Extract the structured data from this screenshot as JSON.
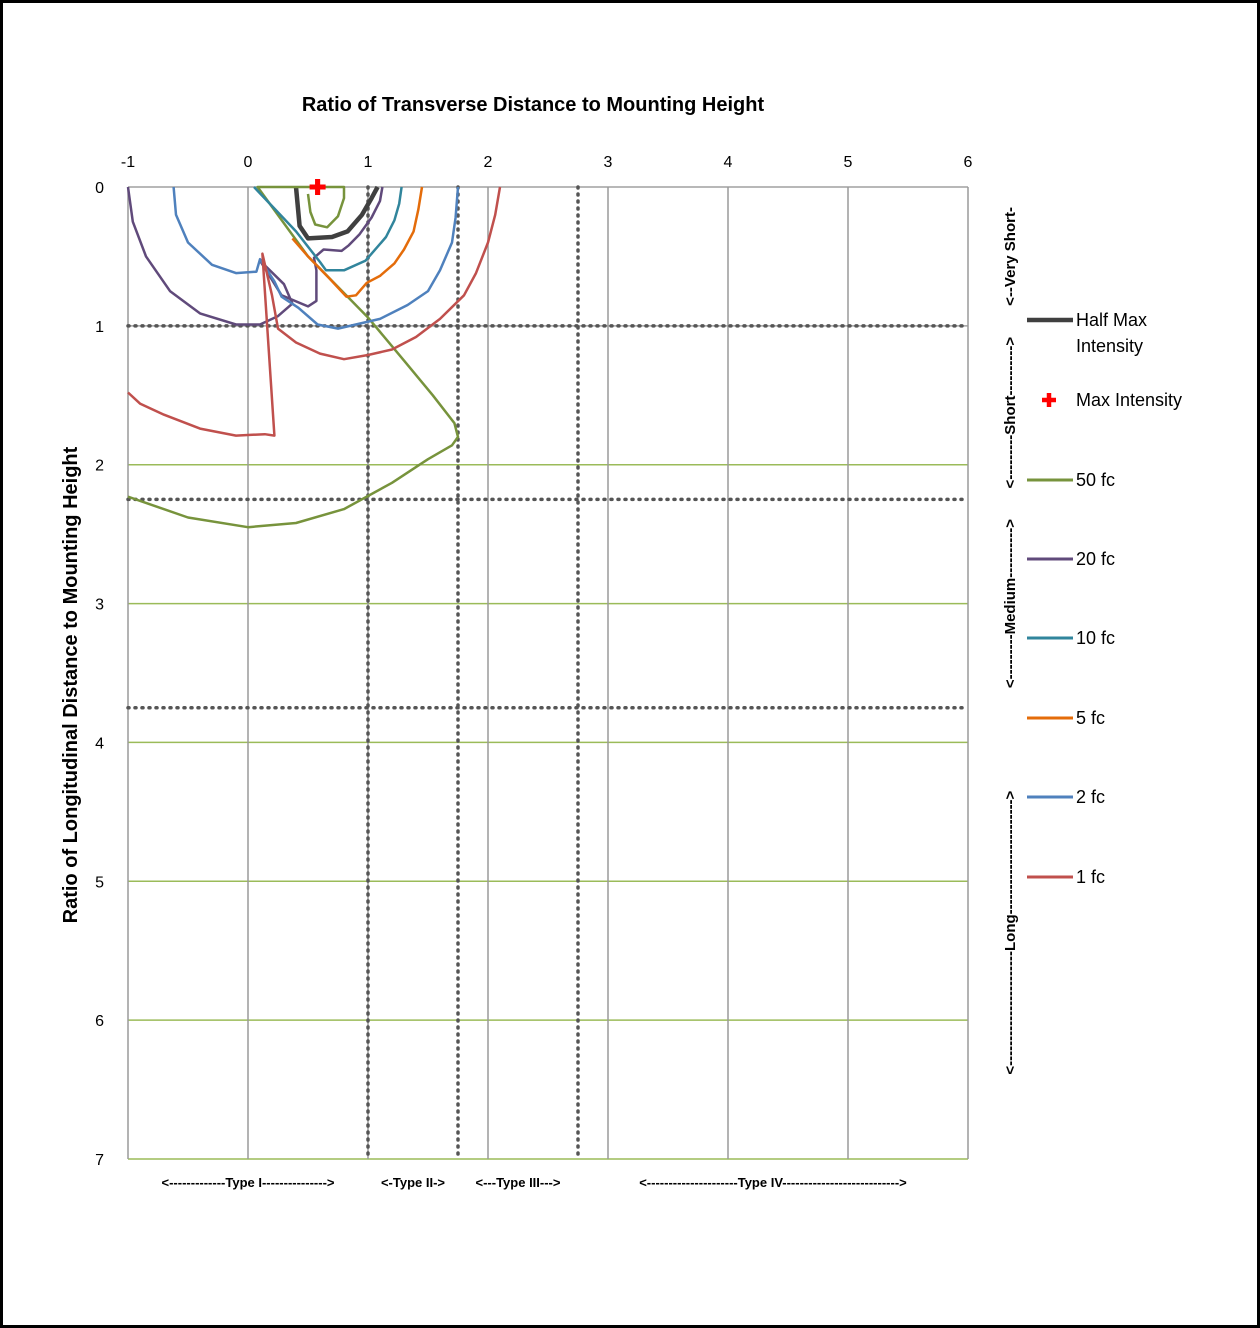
{
  "chart_data": {
    "type": "line",
    "title": "Ratio of Transverse Distance to Mounting Height",
    "ylabel": "Ratio of Longitudinal Distance to Mounting Height",
    "xlim": [
      -1,
      6
    ],
    "ylim": [
      0,
      7
    ],
    "y_inverted": true,
    "x_axis_position": "top",
    "x_ticks": [
      "-1",
      "0",
      "1",
      "2",
      "3",
      "4",
      "5",
      "6"
    ],
    "y_ticks": [
      "0",
      "1",
      "2",
      "3",
      "4",
      "5",
      "6",
      "7"
    ],
    "legend_position": "right",
    "grid": true,
    "series": [
      {
        "name": "Half Max Intensity",
        "color": "#404040",
        "points": [
          [
            0.4,
            0
          ],
          [
            0.43,
            0.28
          ],
          [
            0.5,
            0.37
          ],
          [
            0.7,
            0.36
          ],
          [
            0.83,
            0.32
          ],
          [
            0.95,
            0.2
          ],
          [
            1.03,
            0.08
          ],
          [
            1.08,
            0
          ]
        ]
      },
      {
        "name": "50 fc",
        "color": "#77933c",
        "points": [
          [
            0.5,
            0.05
          ],
          [
            0.52,
            0.18
          ],
          [
            0.56,
            0.27
          ],
          [
            0.66,
            0.29
          ],
          [
            0.75,
            0.21
          ],
          [
            0.8,
            0.08
          ],
          [
            0.8,
            0
          ],
          [
            0.08,
            0
          ],
          [
            0.5,
            0.5
          ],
          [
            1.0,
            0.94
          ],
          [
            1.3,
            1.25
          ],
          [
            1.54,
            1.5
          ],
          [
            1.72,
            1.7
          ],
          [
            1.75,
            1.8
          ],
          [
            1.7,
            1.86
          ],
          [
            1.5,
            1.96
          ],
          [
            1.43,
            2.0
          ],
          [
            1.2,
            2.13
          ],
          [
            0.8,
            2.32
          ],
          [
            0.4,
            2.42
          ],
          [
            0,
            2.45
          ],
          [
            -0.5,
            2.38
          ],
          [
            -1,
            2.23
          ]
        ]
      },
      {
        "name": "20 fc",
        "color": "#604a7b",
        "points": [
          [
            -1,
            0
          ],
          [
            -0.96,
            0.25
          ],
          [
            -0.85,
            0.5
          ],
          [
            -0.65,
            0.75
          ],
          [
            -0.4,
            0.91
          ],
          [
            -0.1,
            0.99
          ],
          [
            0.1,
            0.99
          ],
          [
            0.25,
            0.93
          ],
          [
            0.37,
            0.84
          ],
          [
            0.3,
            0.7
          ],
          [
            0.1,
            0.53
          ],
          [
            0.28,
            0.78
          ],
          [
            0.5,
            0.86
          ],
          [
            0.57,
            0.82
          ],
          [
            0.57,
            0.6
          ],
          [
            0.55,
            0.51
          ],
          [
            0.63,
            0.45
          ],
          [
            0.78,
            0.46
          ],
          [
            0.84,
            0.42
          ],
          [
            0.93,
            0.34
          ],
          [
            1.03,
            0.22
          ],
          [
            1.1,
            0.1
          ],
          [
            1.12,
            0
          ]
        ]
      },
      {
        "name": "10 fc",
        "color": "#31859c",
        "points": [
          [
            0.05,
            0
          ],
          [
            0.4,
            0.32
          ],
          [
            0.6,
            0.54
          ],
          [
            0.65,
            0.6
          ],
          [
            0.8,
            0.6
          ],
          [
            0.98,
            0.53
          ],
          [
            1.15,
            0.36
          ],
          [
            1.22,
            0.24
          ],
          [
            1.26,
            0.12
          ],
          [
            1.28,
            0
          ]
        ]
      },
      {
        "name": "5 fc",
        "color": "#e46c0a",
        "points": [
          [
            0.37,
            0.37
          ],
          [
            0.5,
            0.5
          ],
          [
            0.68,
            0.66
          ],
          [
            0.82,
            0.79
          ],
          [
            0.9,
            0.78
          ],
          [
            0.99,
            0.69
          ],
          [
            1.1,
            0.64
          ],
          [
            1.22,
            0.55
          ],
          [
            1.3,
            0.45
          ],
          [
            1.38,
            0.32
          ],
          [
            1.42,
            0.16
          ],
          [
            1.45,
            0
          ]
        ]
      },
      {
        "name": "2 fc",
        "color": "#4f81bd",
        "points": [
          [
            -0.62,
            0
          ],
          [
            -0.6,
            0.2
          ],
          [
            -0.5,
            0.4
          ],
          [
            -0.3,
            0.56
          ],
          [
            -0.1,
            0.62
          ],
          [
            0.07,
            0.61
          ],
          [
            0.1,
            0.52
          ],
          [
            0.22,
            0.68
          ],
          [
            0.28,
            0.79
          ],
          [
            0.42,
            0.87
          ],
          [
            0.58,
            0.99
          ],
          [
            0.75,
            1.02
          ],
          [
            1.1,
            0.95
          ],
          [
            1.33,
            0.85
          ],
          [
            1.5,
            0.75
          ],
          [
            1.6,
            0.6
          ],
          [
            1.7,
            0.4
          ],
          [
            1.73,
            0.22
          ],
          [
            1.75,
            0
          ]
        ]
      },
      {
        "name": "1 fc",
        "color": "#c0504d",
        "points": [
          [
            2.1,
            0
          ],
          [
            2.06,
            0.2
          ],
          [
            2.0,
            0.4
          ],
          [
            1.9,
            0.62
          ],
          [
            1.8,
            0.78
          ],
          [
            1.6,
            0.95
          ],
          [
            1.4,
            1.08
          ],
          [
            1.2,
            1.17
          ],
          [
            1.0,
            1.21
          ],
          [
            0.8,
            1.24
          ],
          [
            0.6,
            1.2
          ],
          [
            0.4,
            1.12
          ],
          [
            0.25,
            1.02
          ],
          [
            0.2,
            0.78
          ],
          [
            0.12,
            0.48
          ],
          [
            0.22,
            1.79
          ],
          [
            0.14,
            1.78
          ],
          [
            -0.1,
            1.79
          ],
          [
            -0.4,
            1.74
          ],
          [
            -0.7,
            1.64
          ],
          [
            -0.9,
            1.56
          ],
          [
            -1,
            1.48
          ]
        ]
      }
    ],
    "max_intensity": {
      "name": "Max Intensity",
      "color": "#ff0000",
      "point": [
        0.58,
        0
      ]
    },
    "type_boundaries_x": [
      1,
      1.75,
      2.75
    ],
    "range_boundaries_y": [
      1,
      2.25,
      3.75
    ],
    "type_labels": [
      "<-------------Type I--------------->",
      "<-Type II->",
      "<---Type III--->",
      "<---------------------Type IV--------------------------->"
    ],
    "type_label_x": [
      0,
      1.375,
      2.25,
      4.375
    ],
    "range_labels": [
      {
        "text": "<--Very Short-",
        "y": 0.5
      },
      {
        "text": "<---------Short---------->",
        "y": 1.625
      },
      {
        "text": "<---------Medium---------->",
        "y": 3.0
      },
      {
        "text": "<-----------------------Long----------------------->",
        "y": 5.37
      }
    ]
  }
}
